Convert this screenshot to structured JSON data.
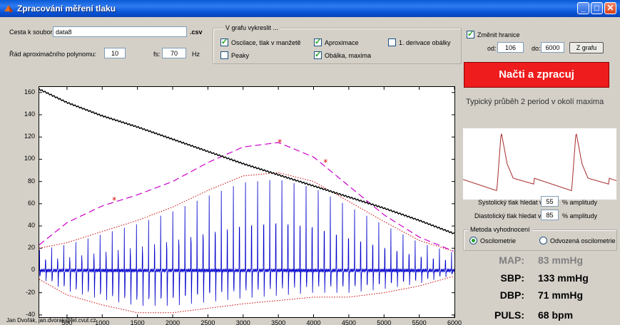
{
  "window": {
    "title": "Zpracování měření tlaku"
  },
  "file": {
    "label": "Cesta k souboru:",
    "value": "data8",
    "ext": ".csv"
  },
  "poly": {
    "label": "Řád aproximačního polynomu:",
    "value": "10"
  },
  "fs": {
    "label": "fs:",
    "value": "70",
    "unit": "Hz"
  },
  "plot_options": {
    "title": "V grafu vykreslit ...",
    "items": [
      {
        "label": "Oscilace, tlak v manžetě",
        "checked": true
      },
      {
        "label": "Aproximace",
        "checked": true
      },
      {
        "label": "1. derivace obálky",
        "checked": false
      },
      {
        "label": "Peaky",
        "checked": false
      },
      {
        "label": "Obálka, maxima",
        "checked": true
      }
    ]
  },
  "bounds": {
    "checkbox_label": "Změnit hranice",
    "checked": true,
    "from_label": "od:",
    "from_value": "106",
    "to_label": "do:",
    "to_value": "6000",
    "button": "Z grafu"
  },
  "load_button": "Načti a zpracuj",
  "typical_title": "Typický průběh 2 period v okolí maxima",
  "systolic": {
    "label": "Systolický tlak hledat v",
    "value": "55",
    "unit": "% amplitudy"
  },
  "diastolic": {
    "label": "Diastolický tlak hledat v",
    "value": "85",
    "unit": "% amplitudy"
  },
  "method": {
    "title": "Metoda vyhodnocení",
    "options": [
      {
        "label": "Oscilometrie",
        "selected": true
      },
      {
        "label": "Odvozená oscilometrie",
        "selected": false
      }
    ]
  },
  "results": {
    "map": {
      "label": "MAP:",
      "value": "83 mmHg"
    },
    "sbp": {
      "label": "SBP:",
      "value": "133 mmHg"
    },
    "dbp": {
      "label": "DBP:",
      "value": "71 mmHg"
    },
    "puls": {
      "label": "PULS:",
      "value": "68 bpm"
    }
  },
  "footer": "Jan Dvořák, jan.dvorak@fel.cvut.cz",
  "colors": {
    "titlebar": "#0a5ad6",
    "load_button": "#ee1c1c",
    "oscillation": "#0000cc",
    "pressure": "#000000",
    "envelope": "#cc0000",
    "approximation": "#cc00cc",
    "pulse_curve": "#a52a2a",
    "map_label": "#808080"
  },
  "chart_data": {
    "type": "line",
    "xlim": [
      106,
      6000
    ],
    "ylim": [
      -42,
      165
    ],
    "x_ticks": [
      500,
      1000,
      1500,
      2000,
      2500,
      3000,
      3500,
      4000,
      4500,
      5000,
      5500,
      6000
    ],
    "y_ticks": [
      -40,
      -20,
      0,
      20,
      40,
      60,
      80,
      100,
      120,
      140,
      160
    ],
    "series": [
      {
        "kind": "cuff-pressure",
        "x": [
          106,
          500,
          1000,
          1500,
          2000,
          2500,
          3000,
          3500,
          4000,
          4500,
          5000,
          5500,
          6000
        ],
        "y": [
          163,
          151,
          139,
          129,
          118,
          107,
          96,
          86,
          76,
          66,
          56,
          45,
          33
        ]
      },
      {
        "kind": "approximation",
        "x": [
          106,
          500,
          1000,
          1500,
          2000,
          2500,
          3000,
          3500,
          4000,
          4500,
          5000,
          5500,
          6000
        ],
        "y": [
          23,
          43,
          58,
          68,
          80,
          97,
          111,
          115,
          102,
          76,
          50,
          30,
          17
        ]
      },
      {
        "kind": "envelope-upper",
        "x": [
          106,
          500,
          1000,
          1500,
          2000,
          2500,
          3000,
          3500,
          4000,
          4500,
          5000,
          5500,
          6000
        ],
        "y": [
          20,
          25,
          35,
          45,
          57,
          72,
          85,
          88,
          80,
          62,
          44,
          27,
          17
        ]
      },
      {
        "kind": "envelope-lower",
        "x": [
          106,
          500,
          1000,
          1500,
          2000,
          2500,
          3000,
          3500,
          4000,
          4500,
          5000,
          5500,
          6000
        ],
        "y": [
          -8,
          -22,
          -31,
          -38,
          -38,
          -34,
          -30,
          -27,
          -24,
          -24,
          -20,
          -14,
          -5
        ]
      }
    ],
    "markers": [
      {
        "x": 1170,
        "y": 63
      },
      {
        "x": 3520,
        "y": 115
      },
      {
        "x": 4170,
        "y": 97
      }
    ],
    "oscillation": {
      "x_start": 106,
      "x_end": 6000,
      "beat_period": 86
    }
  }
}
